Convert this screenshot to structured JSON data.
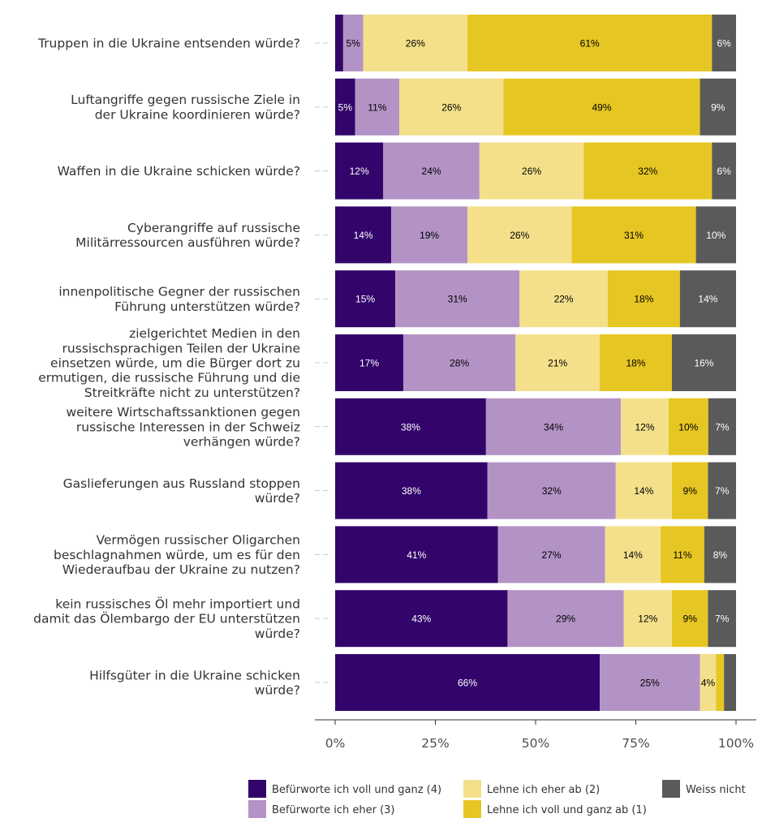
{
  "chart_data": {
    "type": "bar",
    "orientation": "horizontal",
    "stacked": true,
    "categories": [
      "Truppen in die Ukraine entsenden würde?",
      "Luftangriffe gegen russische Ziele in der Ukraine koordinieren würde?",
      "Waffen in die Ukraine schicken würde?",
      "Cyberangriffe auf russische Militärressourcen ausführen würde?",
      "innenpolitische Gegner der russischen Führung unterstützen würde?",
      "zielgerichtet Medien in den russischsprachigen Teilen der Ukraine einsetzen würde, um die Bürger dort zu ermutigen, die russische Führung und die Streitkräfte nicht zu unterstützen?",
      "weitere Wirtschaftssanktionen gegen russische Interessen in der Schweiz verhängen würde?",
      "Gaslieferungen aus Russland stoppen würde?",
      "Vermögen russischer Oligarchen beschlagnahmen würde, um es für den Wiederaufbau der Ukraine zu nutzen?",
      "kein russisches Öl mehr importiert und damit das Ölembargo der EU unterstützen würde?",
      "Hilfsgüter in die Ukraine schicken würde?"
    ],
    "category_lines": [
      [
        "Truppen in die Ukraine entsenden würde?"
      ],
      [
        "Luftangriffe gegen russische Ziele in",
        "der Ukraine koordinieren würde?"
      ],
      [
        "Waffen in die Ukraine schicken würde?"
      ],
      [
        "Cyberangriffe auf russische",
        "Militärressourcen ausführen würde?"
      ],
      [
        "innenpolitische Gegner der russischen",
        "Führung unterstützen würde?"
      ],
      [
        "zielgerichtet Medien in den",
        "russischsprachigen Teilen der Ukraine",
        "einsetzen würde, um die Bürger dort zu",
        "ermutigen, die russische Führung und die",
        "Streitkräfte nicht zu unterstützen?"
      ],
      [
        "weitere Wirtschaftssanktionen gegen",
        "russische Interessen in der Schweiz",
        "verhängen würde?"
      ],
      [
        "Gaslieferungen aus Russland stoppen",
        "würde?"
      ],
      [
        "Vermögen russischer Oligarchen",
        "beschlagnahmen würde, um es für den",
        "Wiederaufbau der Ukraine zu nutzen?"
      ],
      [
        "kein russisches Öl mehr importiert und",
        "damit das Ölembargo der EU unterstützen",
        "würde?"
      ],
      [
        "Hilfsgüter in die Ukraine schicken",
        "würde?"
      ]
    ],
    "series": [
      {
        "name": "Befürworte ich voll und ganz (4)",
        "color": "#33056b",
        "label_color": "#ffffff",
        "values": [
          2,
          5,
          12,
          14,
          15,
          17,
          38,
          38,
          41,
          43,
          66
        ],
        "labels": [
          "",
          "5%",
          "12%",
          "14%",
          "15%",
          "17%",
          "38%",
          "38%",
          "41%",
          "43%",
          "66%"
        ]
      },
      {
        "name": "Befürworte ich eher (3)",
        "color": "#b393c6",
        "label_color": "#000000",
        "values": [
          5,
          11,
          24,
          19,
          31,
          28,
          34,
          32,
          27,
          29,
          25
        ],
        "labels": [
          "5%",
          "11%",
          "24%",
          "19%",
          "31%",
          "28%",
          "34%",
          "32%",
          "27%",
          "29%",
          "25%"
        ]
      },
      {
        "name": "Lehne ich eher ab (2)",
        "color": "#f4e08a",
        "label_color": "#000000",
        "values": [
          26,
          26,
          26,
          26,
          22,
          21,
          12,
          14,
          14,
          12,
          4
        ],
        "labels": [
          "26%",
          "26%",
          "26%",
          "26%",
          "22%",
          "21%",
          "12%",
          "14%",
          "14%",
          "12%",
          "4%"
        ]
      },
      {
        "name": "Lehne ich voll und ganz ab (1)",
        "color": "#e6c623",
        "label_color": "#000000",
        "values": [
          61,
          49,
          32,
          31,
          18,
          18,
          10,
          9,
          11,
          9,
          2
        ],
        "labels": [
          "61%",
          "49%",
          "32%",
          "31%",
          "18%",
          "18%",
          "10%",
          "9%",
          "11%",
          "9%",
          ""
        ]
      },
      {
        "name": "Weiss nicht",
        "color": "#5a5a5a",
        "label_color": "#ffffff",
        "values": [
          6,
          9,
          6,
          10,
          14,
          16,
          7,
          7,
          8,
          7,
          3
        ],
        "labels": [
          "6%",
          "9%",
          "6%",
          "10%",
          "14%",
          "16%",
          "7%",
          "7%",
          "8%",
          "7%",
          ""
        ]
      }
    ],
    "xlim": [
      0,
      100
    ],
    "x_ticks": [
      "0%",
      "25%",
      "50%",
      "75%",
      "100%"
    ],
    "legend_position": "bottom",
    "title": "",
    "xlabel": "",
    "ylabel": ""
  }
}
